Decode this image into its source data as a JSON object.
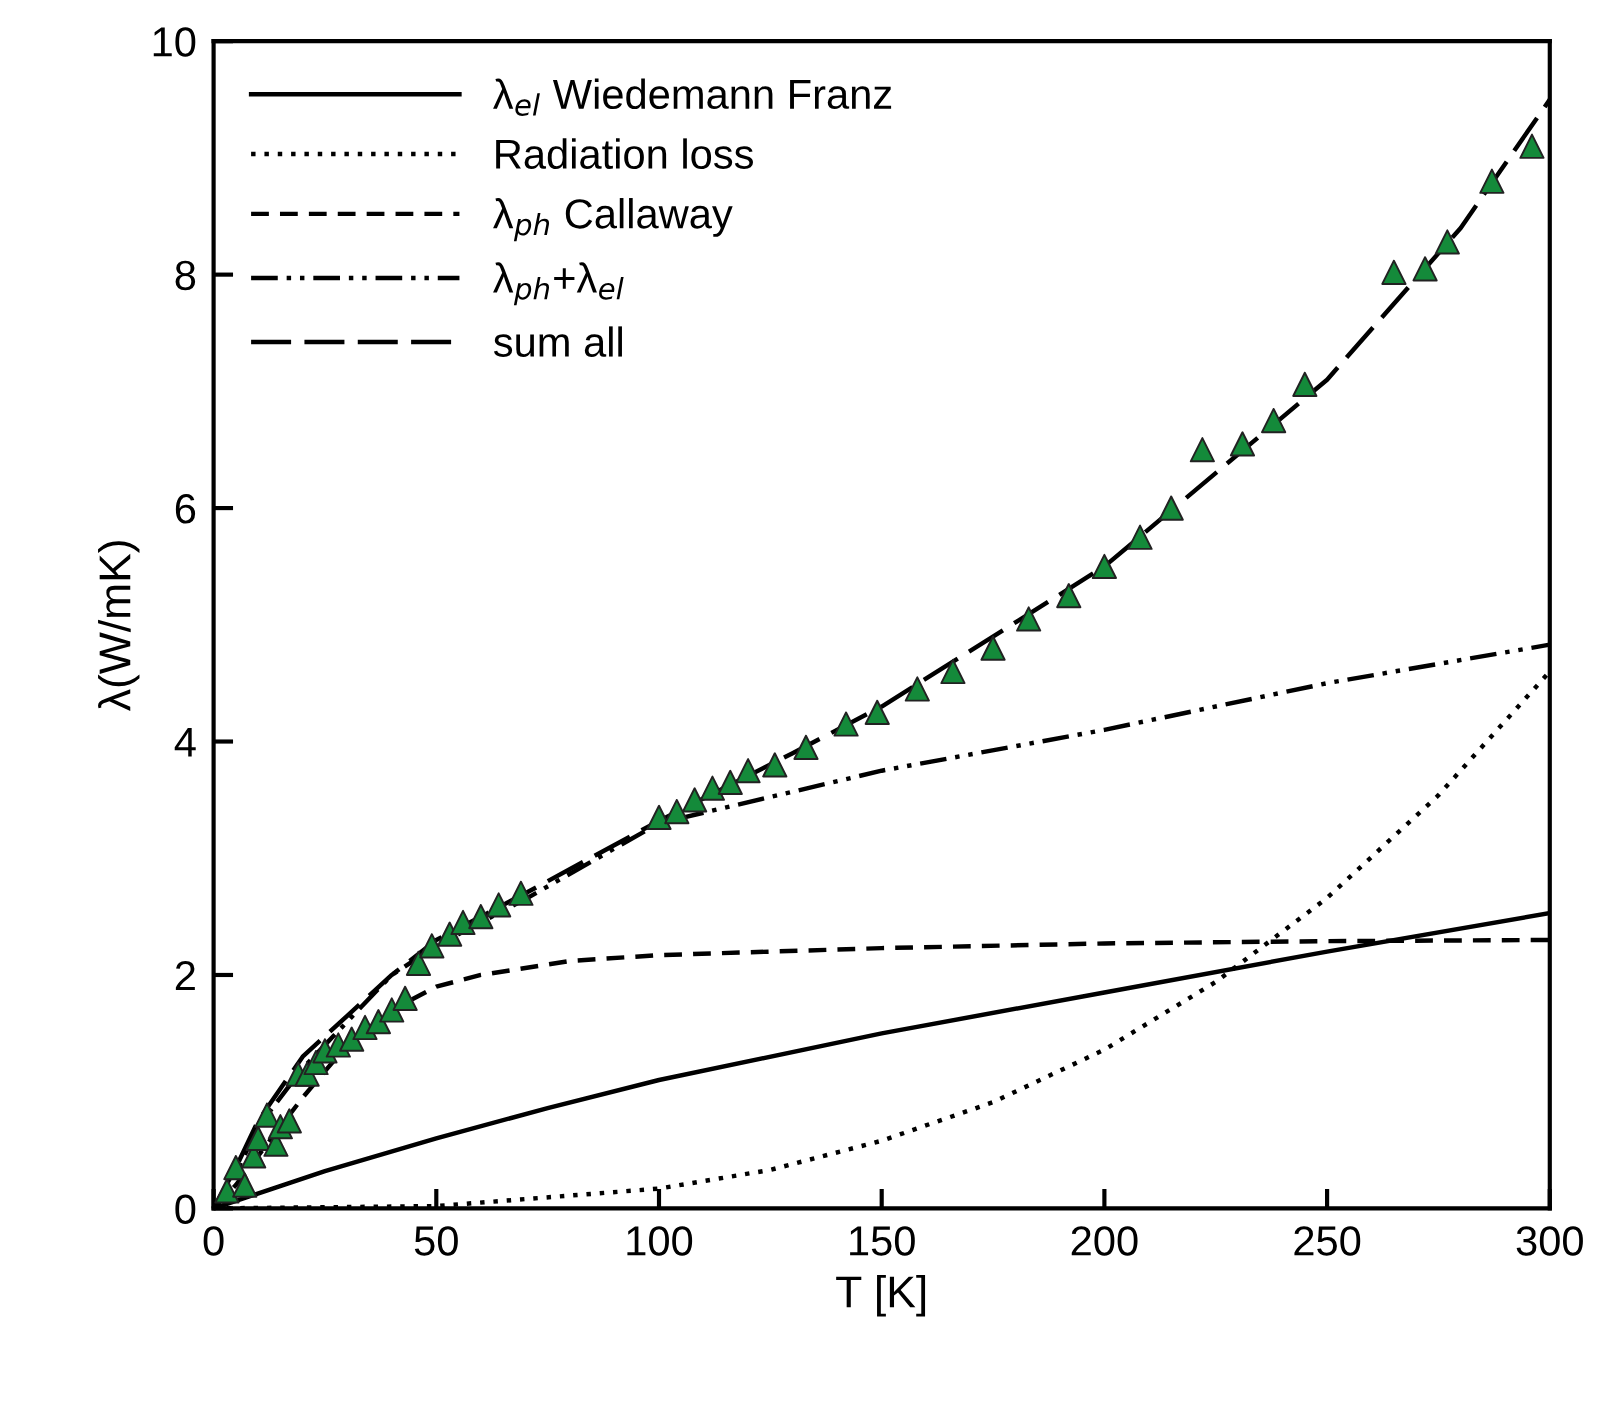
{
  "chart_data": {
    "type": "line",
    "xlabel": "T [K]",
    "ylabel": "λ(W/mK)",
    "xlim": [
      0,
      300
    ],
    "xticks": [
      0,
      50,
      100,
      150,
      200,
      250,
      300
    ],
    "ylim": [
      0,
      10
    ],
    "yticks": [
      0,
      2,
      4,
      6,
      8,
      10
    ],
    "grid": false,
    "legend": "top left",
    "series": [
      {
        "name": "λ$_{el}$ Wiedemann Franz",
        "color": "#000000",
        "line_style": "solid",
        "marker": "none",
        "x": [
          0,
          25,
          50,
          75,
          100,
          150,
          200,
          250,
          300
        ],
        "values": [
          0,
          0.32,
          0.6,
          0.86,
          1.1,
          1.5,
          1.85,
          2.2,
          2.53
        ]
      },
      {
        "name": "Radiation loss",
        "color": "#000000",
        "line_style": "dotted",
        "marker": "none",
        "x": [
          0,
          50,
          100,
          125,
          150,
          175,
          200,
          225,
          250,
          275,
          300
        ],
        "values": [
          0,
          0.02,
          0.17,
          0.33,
          0.58,
          0.91,
          1.36,
          1.94,
          2.66,
          3.54,
          4.6
        ]
      },
      {
        "name": "λ$_{ph}$ Callaway",
        "color": "#000000",
        "line_style": "dashed",
        "marker": "none",
        "x": [
          0,
          5,
          10,
          20,
          30,
          40,
          50,
          60,
          80,
          100,
          150,
          200,
          250,
          300
        ],
        "values": [
          0,
          0.2,
          0.45,
          0.95,
          1.4,
          1.7,
          1.9,
          2.0,
          2.12,
          2.17,
          2.23,
          2.27,
          2.29,
          2.3
        ]
      },
      {
        "name": "λ$_{ph}$+λ$_{el}$",
        "color": "#000000",
        "line_style": "dashdotdot",
        "marker": "none",
        "x": [
          0,
          5,
          10,
          20,
          30,
          40,
          50,
          70,
          100,
          150,
          200,
          250,
          300
        ],
        "values": [
          0,
          0.3,
          0.7,
          1.2,
          1.6,
          2.0,
          2.25,
          2.65,
          3.3,
          3.75,
          4.1,
          4.5,
          4.83
        ]
      },
      {
        "name": "sum all",
        "color": "#000000",
        "line_style": "longdash",
        "marker": "none",
        "x": [
          0,
          5,
          10,
          20,
          30,
          40,
          50,
          70,
          100,
          130,
          150,
          200,
          250,
          280,
          300
        ],
        "values": [
          0,
          0.35,
          0.75,
          1.3,
          1.65,
          2.0,
          2.3,
          2.7,
          3.32,
          3.9,
          4.3,
          5.5,
          7.1,
          8.4,
          9.5
        ]
      },
      {
        "type": "scatter",
        "color": "#148a3a",
        "marker": "triangle",
        "x": [
          3,
          5,
          7,
          9,
          10,
          12,
          14,
          15,
          17,
          19,
          21,
          23,
          25,
          28,
          31,
          34,
          37,
          40,
          43,
          46,
          49,
          53,
          56,
          60,
          64,
          69,
          100,
          104,
          108,
          112,
          116,
          120,
          126,
          133,
          142,
          149,
          158,
          166,
          175,
          183,
          192,
          200,
          208,
          215,
          222,
          231,
          238,
          245,
          265,
          272,
          277,
          287,
          296
        ],
        "values": [
          0.15,
          0.35,
          0.2,
          0.45,
          0.6,
          0.8,
          0.55,
          0.7,
          0.75,
          1.15,
          1.15,
          1.25,
          1.35,
          1.4,
          1.45,
          1.55,
          1.6,
          1.7,
          1.8,
          2.1,
          2.25,
          2.35,
          2.45,
          2.5,
          2.6,
          2.7,
          3.35,
          3.4,
          3.5,
          3.6,
          3.65,
          3.75,
          3.8,
          3.95,
          4.15,
          4.25,
          4.45,
          4.6,
          4.8,
          5.05,
          5.25,
          5.5,
          5.75,
          6.0,
          6.5,
          6.55,
          6.75,
          7.06,
          8.02,
          8.05,
          8.28,
          8.8,
          9.1
        ]
      }
    ]
  }
}
